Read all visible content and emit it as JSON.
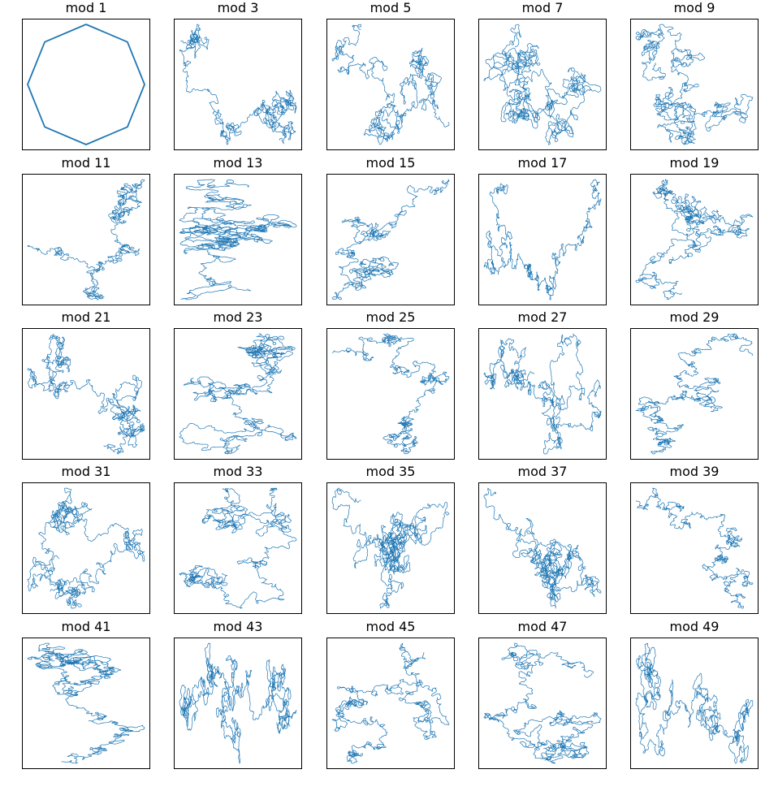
{
  "figure": {
    "background": "#ffffff",
    "line_color": "#1f77b4",
    "frame_color": "#000000",
    "rows": 5,
    "cols": 5
  },
  "chart_data": [
    {
      "type": "line",
      "title": "mod 1",
      "shape": "octagon",
      "axes_visible": false,
      "grid": false
    },
    {
      "type": "line",
      "title": "mod 3",
      "shape": "random-walk",
      "axes_visible": false,
      "grid": false
    },
    {
      "type": "line",
      "title": "mod 5",
      "shape": "random-walk",
      "axes_visible": false,
      "grid": false
    },
    {
      "type": "line",
      "title": "mod 7",
      "shape": "random-walk",
      "axes_visible": false,
      "grid": false
    },
    {
      "type": "line",
      "title": "mod 9",
      "shape": "random-walk",
      "axes_visible": false,
      "grid": false
    },
    {
      "type": "line",
      "title": "mod 11",
      "shape": "random-walk",
      "axes_visible": false,
      "grid": false
    },
    {
      "type": "line",
      "title": "mod 13",
      "shape": "random-walk",
      "axes_visible": false,
      "grid": false
    },
    {
      "type": "line",
      "title": "mod 15",
      "shape": "random-walk",
      "axes_visible": false,
      "grid": false
    },
    {
      "type": "line",
      "title": "mod 17",
      "shape": "random-walk",
      "axes_visible": false,
      "grid": false
    },
    {
      "type": "line",
      "title": "mod 19",
      "shape": "random-walk",
      "axes_visible": false,
      "grid": false
    },
    {
      "type": "line",
      "title": "mod 21",
      "shape": "random-walk",
      "axes_visible": false,
      "grid": false
    },
    {
      "type": "line",
      "title": "mod 23",
      "shape": "random-walk",
      "axes_visible": false,
      "grid": false
    },
    {
      "type": "line",
      "title": "mod 25",
      "shape": "random-walk",
      "axes_visible": false,
      "grid": false
    },
    {
      "type": "line",
      "title": "mod 27",
      "shape": "random-walk",
      "axes_visible": false,
      "grid": false
    },
    {
      "type": "line",
      "title": "mod 29",
      "shape": "random-walk",
      "axes_visible": false,
      "grid": false
    },
    {
      "type": "line",
      "title": "mod 31",
      "shape": "random-walk",
      "axes_visible": false,
      "grid": false
    },
    {
      "type": "line",
      "title": "mod 33",
      "shape": "random-walk",
      "axes_visible": false,
      "grid": false
    },
    {
      "type": "line",
      "title": "mod 35",
      "shape": "random-walk",
      "axes_visible": false,
      "grid": false
    },
    {
      "type": "line",
      "title": "mod 37",
      "shape": "random-walk",
      "axes_visible": false,
      "grid": false
    },
    {
      "type": "line",
      "title": "mod 39",
      "shape": "random-walk",
      "axes_visible": false,
      "grid": false
    },
    {
      "type": "line",
      "title": "mod 41",
      "shape": "random-walk",
      "axes_visible": false,
      "grid": false
    },
    {
      "type": "line",
      "title": "mod 43",
      "shape": "random-walk",
      "axes_visible": false,
      "grid": false
    },
    {
      "type": "line",
      "title": "mod 45",
      "shape": "random-walk",
      "axes_visible": false,
      "grid": false
    },
    {
      "type": "line",
      "title": "mod 47",
      "shape": "random-walk",
      "axes_visible": false,
      "grid": false
    },
    {
      "type": "line",
      "title": "mod 49",
      "shape": "random-walk",
      "axes_visible": false,
      "grid": false
    }
  ]
}
